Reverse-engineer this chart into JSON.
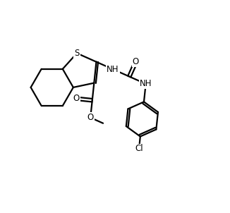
{
  "bg_color": "#ffffff",
  "line_color": "#000000",
  "line_width": 1.6,
  "font_size": 8.5,
  "figsize": [
    3.26,
    3.02
  ],
  "dpi": 100,
  "xlim": [
    0,
    10
  ],
  "ylim": [
    0,
    9.3
  ]
}
